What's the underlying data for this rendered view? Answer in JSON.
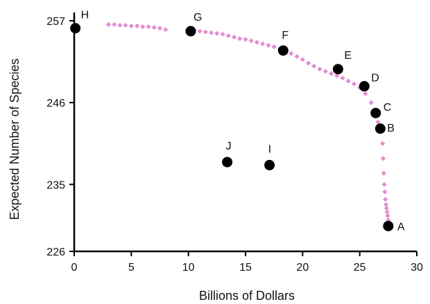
{
  "chart_data": {
    "type": "scatter",
    "title": "",
    "xlabel": "Billions of Dollars",
    "ylabel": "Expected Number of Species",
    "xlim": [
      0,
      30
    ],
    "ylim": [
      226,
      259
    ],
    "x_ticks": [
      0,
      5,
      10,
      15,
      20,
      25,
      30
    ],
    "y_ticks": [
      226,
      235,
      246,
      257
    ],
    "grid": false,
    "legend": "none",
    "colors": {
      "frontier": "#e38fd0",
      "labeled_points": "#000000",
      "axes": "#000000"
    },
    "series": [
      {
        "marker": "diamond",
        "x": [
          3.0,
          3.5,
          4.0,
          4.5,
          5.0,
          5.5,
          6.0,
          6.5,
          7.0,
          7.5,
          8.0,
          10.5,
          11.0,
          11.5,
          12.0,
          12.5,
          13.0,
          13.5,
          14.0,
          14.5,
          15.0,
          15.5,
          16.0,
          16.5,
          17.0,
          17.5,
          18.0,
          18.5,
          19.0,
          19.5,
          20.0,
          20.5,
          21.0,
          21.5,
          22.0,
          22.5,
          23.0,
          23.5,
          24.0,
          24.5,
          25.0,
          25.5,
          26.0,
          26.3,
          26.6,
          26.8,
          27.0,
          27.05,
          27.1,
          27.15,
          27.2,
          27.25,
          27.3,
          27.35,
          27.4,
          27.45,
          27.5
        ],
        "y": [
          256.5,
          256.5,
          256.4,
          256.4,
          256.3,
          256.3,
          256.2,
          256.2,
          256.1,
          256.0,
          255.8,
          255.7,
          255.6,
          255.5,
          255.4,
          255.3,
          255.2,
          255.0,
          254.8,
          254.6,
          254.5,
          254.3,
          254.1,
          253.9,
          253.7,
          253.5,
          253.2,
          252.9,
          252.6,
          252.2,
          251.8,
          251.3,
          250.9,
          250.5,
          250.2,
          249.9,
          249.6,
          249.3,
          248.9,
          248.5,
          248.0,
          247.2,
          246.0,
          244.8,
          243.4,
          242.4,
          240.5,
          238.5,
          236.5,
          235.0,
          234.0,
          233.0,
          232.3,
          231.8,
          231.3,
          230.8,
          230.2
        ]
      }
    ],
    "points": [
      {
        "label": "H",
        "x": 0.1,
        "y": 256.0
      },
      {
        "label": "G",
        "x": 10.2,
        "y": 255.6
      },
      {
        "label": "F",
        "x": 18.3,
        "y": 253.0
      },
      {
        "label": "E",
        "x": 23.1,
        "y": 250.5
      },
      {
        "label": "D",
        "x": 25.4,
        "y": 248.2
      },
      {
        "label": "C",
        "x": 26.4,
        "y": 244.6
      },
      {
        "label": "B",
        "x": 26.8,
        "y": 242.5
      },
      {
        "label": "J",
        "x": 13.4,
        "y": 238.0
      },
      {
        "label": "I",
        "x": 17.1,
        "y": 237.6
      },
      {
        "label": "A",
        "x": 27.5,
        "y": 229.4
      }
    ]
  }
}
